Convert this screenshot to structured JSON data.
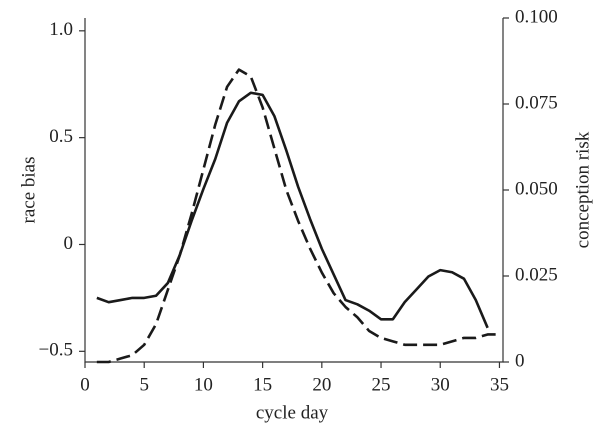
{
  "chart_data": {
    "type": "line",
    "xlabel": "cycle day",
    "ylabel": "race bias",
    "y2label": "conception risk",
    "xlim": [
      0,
      35.3
    ],
    "xticks": [
      0,
      5,
      10,
      15,
      20,
      25,
      30,
      35
    ],
    "ylim": [
      -0.55,
      1.06
    ],
    "yticks": [
      {
        "value": -0.5,
        "label": "−0.5"
      },
      0,
      0.5,
      {
        "value": 1,
        "label": "1.0"
      }
    ],
    "y2lim": [
      0,
      0.1
    ],
    "y2ticks": [
      0,
      {
        "value": 0.025,
        "label": "0.025"
      },
      {
        "value": 0.05,
        "label": "0.050"
      },
      {
        "value": 0.075,
        "label": "0.075"
      },
      {
        "value": 0.1,
        "label": "0.100"
      }
    ],
    "series": [
      {
        "color": "#1a1a1a",
        "dashed": false,
        "axis": "y",
        "x": [
          1,
          2,
          3,
          4,
          5,
          6,
          7,
          8,
          9,
          10,
          11,
          12,
          13,
          14,
          15,
          16,
          17,
          18,
          19,
          20,
          21,
          22,
          23,
          24,
          25,
          26,
          27,
          28,
          29,
          30,
          31,
          32,
          33,
          34
        ],
        "values": [
          -0.25,
          -0.27,
          -0.26,
          -0.25,
          -0.25,
          -0.24,
          -0.18,
          -0.05,
          0.11,
          0.26,
          0.4,
          0.57,
          0.67,
          0.71,
          0.7,
          0.6,
          0.44,
          0.27,
          0.12,
          -0.02,
          -0.14,
          -0.26,
          -0.28,
          -0.31,
          -0.35,
          -0.35,
          -0.27,
          -0.21,
          -0.15,
          -0.12,
          -0.13,
          -0.16,
          -0.26,
          -0.39
        ]
      },
      {
        "color": "#1a1a1a",
        "dashed": true,
        "axis": "y2",
        "x": [
          1,
          2,
          3,
          4,
          5,
          6,
          7,
          8,
          9,
          10,
          11,
          12,
          13,
          14,
          15,
          16,
          17,
          18,
          19,
          20,
          21,
          22,
          23,
          24,
          25,
          26,
          27,
          28,
          29,
          30,
          31,
          32,
          33,
          34,
          35
        ],
        "values": [
          0,
          0,
          0.001,
          0.002,
          0.005,
          0.011,
          0.021,
          0.031,
          0.043,
          0.056,
          0.069,
          0.08,
          0.085,
          0.083,
          0.074,
          0.062,
          0.05,
          0.041,
          0.033,
          0.026,
          0.02,
          0.016,
          0.013,
          0.009,
          0.007,
          0.006,
          0.005,
          0.005,
          0.005,
          0.005,
          0.006,
          0.007,
          0.007,
          0.008,
          0.008
        ]
      }
    ]
  }
}
